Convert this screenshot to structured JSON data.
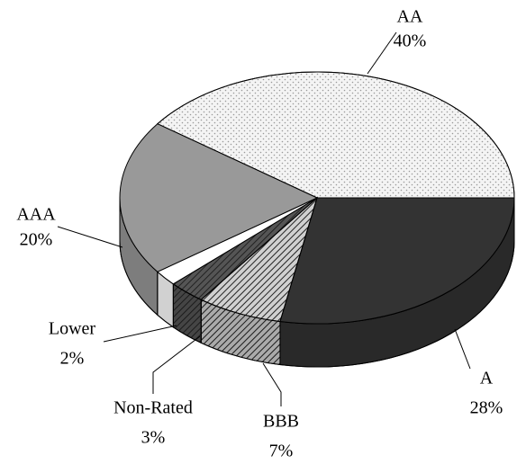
{
  "chart_data": {
    "type": "pie",
    "categories": [
      "AA",
      "A",
      "BBB",
      "Non-Rated",
      "Lower",
      "AAA"
    ],
    "values": [
      40,
      28,
      7,
      3,
      2,
      20
    ],
    "value_labels": [
      "40%",
      "28%",
      "7%",
      "3%",
      "2%",
      "20%"
    ],
    "colors": [
      "#f4f4f4",
      "#333333",
      "#d0d0d0",
      "#555555",
      "#ffffff",
      "#999999"
    ],
    "patterns": [
      "dots",
      null,
      "hatch",
      "hatch",
      null,
      null
    ]
  }
}
